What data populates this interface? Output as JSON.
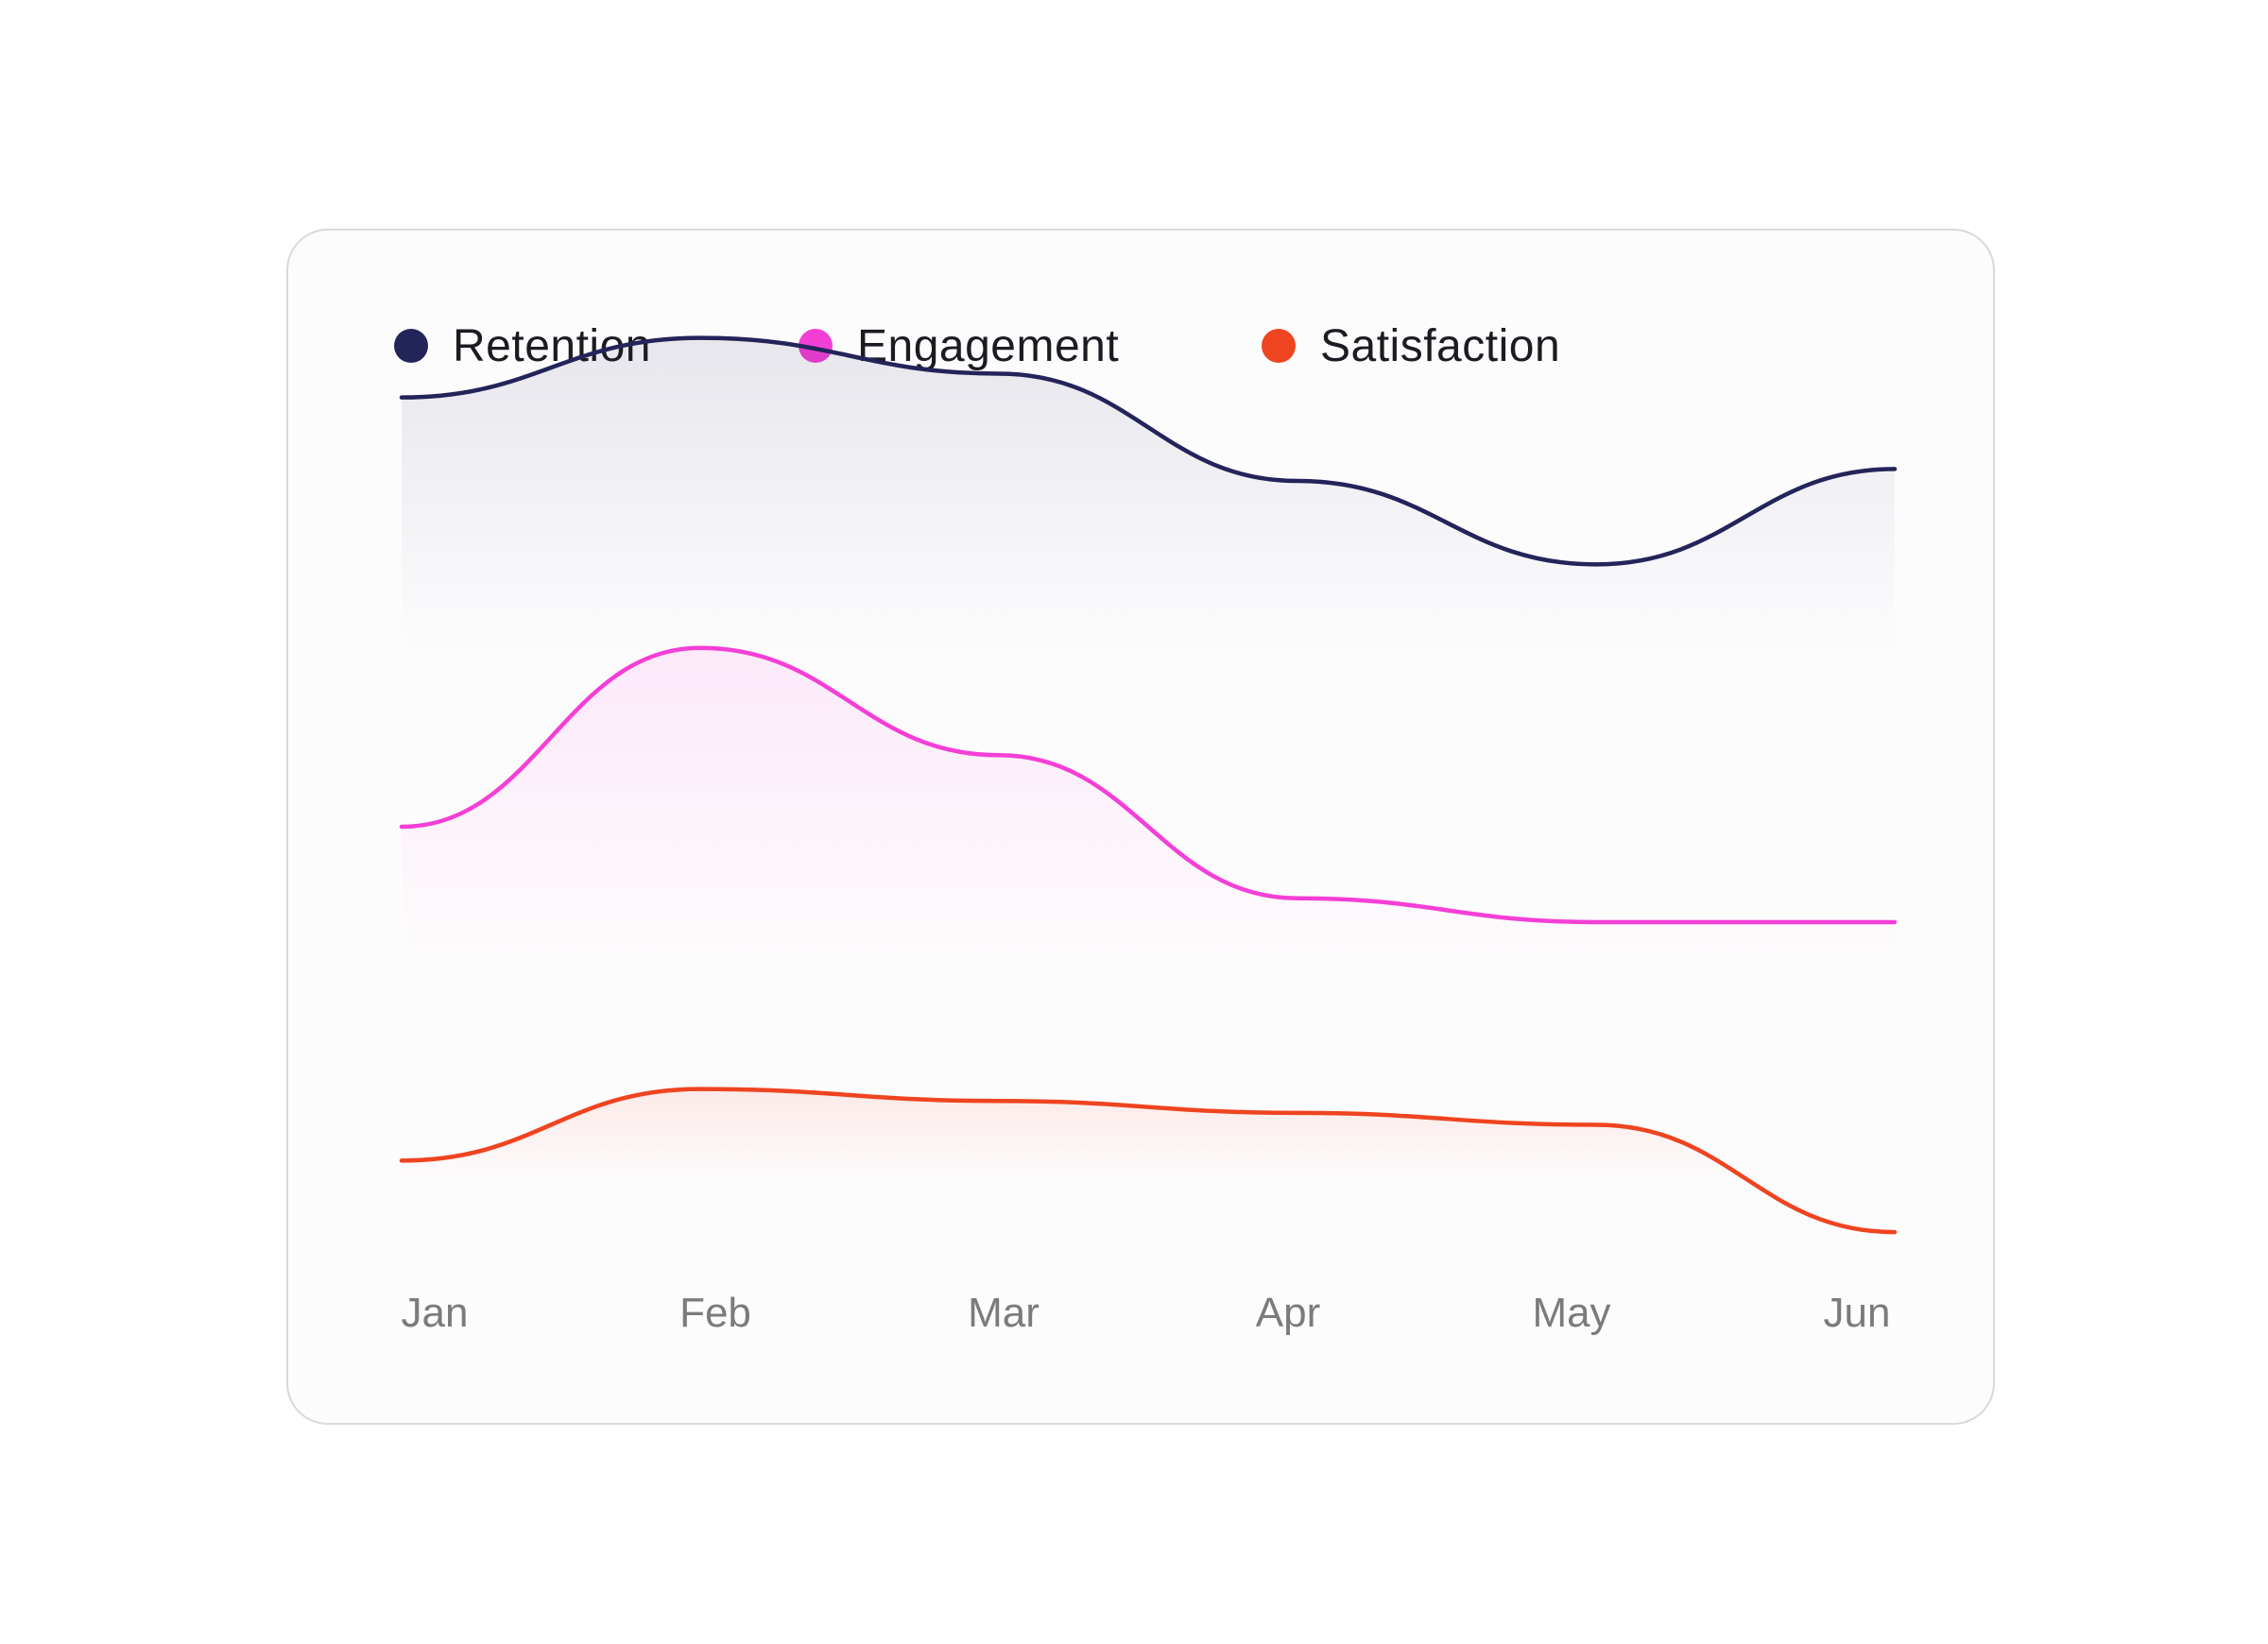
{
  "chart_data": {
    "type": "area",
    "title": "",
    "xlabel": "",
    "ylabel": "",
    "categories": [
      "Jan",
      "Feb",
      "Mar",
      "Apr",
      "May",
      "Jun"
    ],
    "ylim": [
      0,
      100
    ],
    "grid": false,
    "legend_position": "top-left",
    "series": [
      {
        "name": "Retention",
        "color": "#23245a",
        "values": [
          86,
          91,
          88,
          79,
          72,
          80
        ]
      },
      {
        "name": "Engagement",
        "color": "#f43fd6",
        "values": [
          50,
          65,
          56,
          44,
          42,
          42
        ]
      },
      {
        "name": "Satisfaction",
        "color": "#ef4420",
        "values": [
          22,
          28,
          27,
          26,
          25,
          16
        ]
      }
    ]
  }
}
